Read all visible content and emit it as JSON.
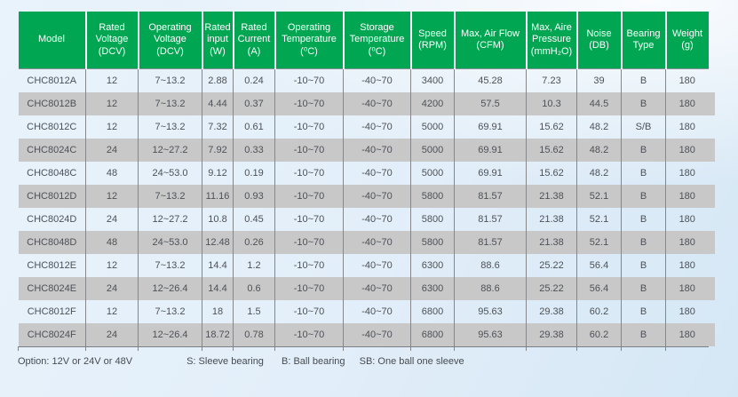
{
  "colors": {
    "header_green": "#00a651",
    "stripe_gray": "#c8c8c8"
  },
  "table": {
    "columns": [
      {
        "key": "model",
        "label": "Model"
      },
      {
        "key": "rated_voltage",
        "label": "Rated\nVoltage\n(DCV)"
      },
      {
        "key": "operating_voltage",
        "label": "Operating\nVoltage\n(DCV)"
      },
      {
        "key": "rated_input",
        "label": "Rated\ninput\n(W)"
      },
      {
        "key": "rated_current",
        "label": "Rated\nCurrent\n(A)"
      },
      {
        "key": "operating_temp",
        "label": "Operating\nTemperature\n(⁰C)"
      },
      {
        "key": "storage_temp",
        "label": "Storage\nTemperature\n(⁰C)"
      },
      {
        "key": "speed",
        "label": "Speed\n(RPM)"
      },
      {
        "key": "max_air_flow",
        "label": "Max, Air Flow\n(CFM)"
      },
      {
        "key": "max_air_pressure",
        "label": "Max, Aire\nPressure\n(mmH₂O)"
      },
      {
        "key": "noise",
        "label": "Noise\n(DB)"
      },
      {
        "key": "bearing_type",
        "label": "Bearing\nType"
      },
      {
        "key": "weight",
        "label": "Weight\n(g)"
      }
    ],
    "rows": [
      [
        "CHC8012A",
        "12",
        "7~13.2",
        "2.88",
        "0.24",
        "-10~70",
        "-40~70",
        "3400",
        "45.28",
        "7.23",
        "39",
        "B",
        "180"
      ],
      [
        "CHC8012B",
        "12",
        "7~13.2",
        "4.44",
        "0.37",
        "-10~70",
        "-40~70",
        "4200",
        "57.5",
        "10.3",
        "44.5",
        "B",
        "180"
      ],
      [
        "CHC8012C",
        "12",
        "7~13.2",
        "7.32",
        "0.61",
        "-10~70",
        "-40~70",
        "5000",
        "69.91",
        "15.62",
        "48.2",
        "S/B",
        "180"
      ],
      [
        "CHC8024C",
        "24",
        "12~27.2",
        "7.92",
        "0.33",
        "-10~70",
        "-40~70",
        "5000",
        "69.91",
        "15.62",
        "48.2",
        "B",
        "180"
      ],
      [
        "CHC8048C",
        "48",
        "24~53.0",
        "9.12",
        "0.19",
        "-10~70",
        "-40~70",
        "5000",
        "69.91",
        "15.62",
        "48.2",
        "B",
        "180"
      ],
      [
        "CHC8012D",
        "12",
        "7~13.2",
        "11.16",
        "0.93",
        "-10~70",
        "-40~70",
        "5800",
        "81.57",
        "21.38",
        "52.1",
        "B",
        "180"
      ],
      [
        "CHC8024D",
        "24",
        "12~27.2",
        "10.8",
        "0.45",
        "-10~70",
        "-40~70",
        "5800",
        "81.57",
        "21.38",
        "52.1",
        "B",
        "180"
      ],
      [
        "CHC8048D",
        "48",
        "24~53.0",
        "12.48",
        "0.26",
        "-10~70",
        "-40~70",
        "5800",
        "81.57",
        "21.38",
        "52.1",
        "B",
        "180"
      ],
      [
        "CHC8012E",
        "12",
        "7~13.2",
        "14.4",
        "1.2",
        "-10~70",
        "-40~70",
        "6300",
        "88.6",
        "25.22",
        "56.4",
        "B",
        "180"
      ],
      [
        "CHC8024E",
        "24",
        "12~26.4",
        "14.4",
        "0.6",
        "-10~70",
        "-40~70",
        "6300",
        "88.6",
        "25.22",
        "56.4",
        "B",
        "180"
      ],
      [
        "CHC8012F",
        "12",
        "7~13.2",
        "18",
        "1.5",
        "-10~70",
        "-40~70",
        "6800",
        "95.63",
        "29.38",
        "60.2",
        "B",
        "180"
      ],
      [
        "CHC8024F",
        "24",
        "12~26.4",
        "18.72",
        "0.78",
        "-10~70",
        "-40~70",
        "6800",
        "95.63",
        "29.38",
        "60.2",
        "B",
        "180"
      ]
    ]
  },
  "footer": {
    "option_note": "Option: 12V or 24V or 48V",
    "legend_s": "S: Sleeve bearing",
    "legend_b": "B: Ball bearing",
    "legend_sb": "SB: One ball one sleeve"
  }
}
